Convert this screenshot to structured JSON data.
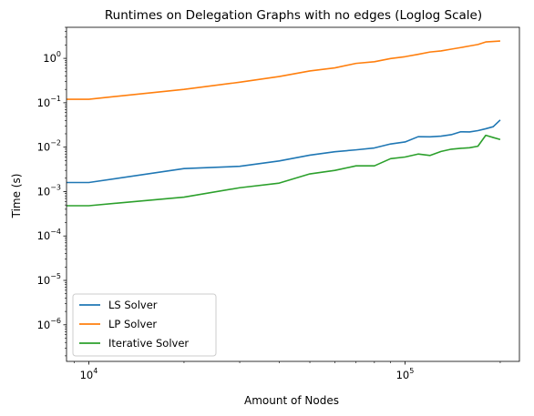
{
  "chart_data": {
    "type": "line",
    "title": "Runtimes on Delegation Graphs with no edges (Loglog Scale)",
    "xlabel": "Amount of Nodes",
    "ylabel": "Time (s)",
    "xscale": "log",
    "yscale": "log",
    "xlim": [
      8500,
      230000
    ],
    "ylim": [
      1.5e-07,
      5
    ],
    "grid": false,
    "legend_position": "lower-left",
    "x_tick_labels": [
      {
        "value": 10000,
        "base": "10",
        "exp": "4"
      },
      {
        "value": 100000,
        "base": "10",
        "exp": "5"
      }
    ],
    "y_tick_labels": [
      {
        "value": 1e-06,
        "base": "10",
        "exp": "−6"
      },
      {
        "value": 1e-05,
        "base": "10",
        "exp": "−5"
      },
      {
        "value": 0.0001,
        "base": "10",
        "exp": "−4"
      },
      {
        "value": 0.001,
        "base": "10",
        "exp": "−3"
      },
      {
        "value": 0.01,
        "base": "10",
        "exp": "−2"
      },
      {
        "value": 0.1,
        "base": "10",
        "exp": "−1"
      },
      {
        "value": 1,
        "base": "10",
        "exp": "0"
      }
    ],
    "series": [
      {
        "name": "LS Solver",
        "color": "#1f77b4",
        "x": [
          8500,
          10000,
          20000,
          30000,
          40000,
          50000,
          60000,
          70000,
          80000,
          90000,
          100000,
          110000,
          120000,
          130000,
          140000,
          150000,
          160000,
          170000,
          180000,
          190000,
          200000
        ],
        "y": [
          0.0016,
          0.0016,
          0.0033,
          0.0037,
          0.0049,
          0.0066,
          0.0079,
          0.0087,
          0.0096,
          0.0118,
          0.0131,
          0.0172,
          0.0171,
          0.0177,
          0.0191,
          0.0222,
          0.022,
          0.0236,
          0.026,
          0.0289,
          0.041
        ]
      },
      {
        "name": "LP Solver",
        "color": "#ff7f0e",
        "x": [
          8500,
          10000,
          20000,
          30000,
          40000,
          50000,
          60000,
          70000,
          80000,
          90000,
          100000,
          110000,
          120000,
          130000,
          140000,
          150000,
          160000,
          170000,
          180000,
          190000,
          200000
        ],
        "y": [
          0.12,
          0.12,
          0.2,
          0.29,
          0.39,
          0.52,
          0.61,
          0.77,
          0.84,
          0.99,
          1.09,
          1.23,
          1.39,
          1.47,
          1.61,
          1.75,
          1.9,
          2.05,
          2.34,
          2.4,
          2.45
        ]
      },
      {
        "name": "Iterative Solver",
        "color": "#2ca02c",
        "x": [
          8500,
          10000,
          20000,
          30000,
          40000,
          50000,
          60000,
          70000,
          80000,
          90000,
          100000,
          110000,
          120000,
          130000,
          140000,
          150000,
          160000,
          170000,
          180000,
          190000,
          200000
        ],
        "y": [
          0.00048,
          0.00048,
          0.00075,
          0.00122,
          0.00155,
          0.0025,
          0.003,
          0.0038,
          0.0038,
          0.0055,
          0.006,
          0.007,
          0.0065,
          0.008,
          0.009,
          0.0094,
          0.0097,
          0.0105,
          0.0185,
          0.0165,
          0.0149
        ]
      }
    ]
  }
}
